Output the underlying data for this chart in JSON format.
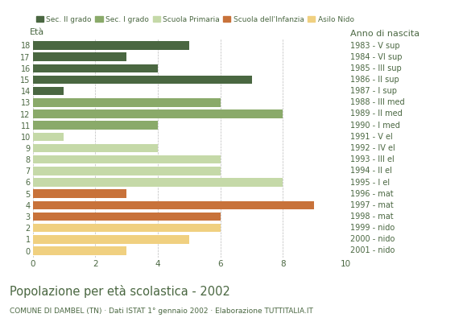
{
  "ages": [
    18,
    17,
    16,
    15,
    14,
    13,
    12,
    11,
    10,
    9,
    8,
    7,
    6,
    5,
    4,
    3,
    2,
    1,
    0
  ],
  "right_labels": [
    "1983 - V sup",
    "1984 - VI sup",
    "1985 - III sup",
    "1986 - II sup",
    "1987 - I sup",
    "1988 - III med",
    "1989 - II med",
    "1990 - I med",
    "1991 - V el",
    "1992 - IV el",
    "1993 - III el",
    "1994 - II el",
    "1995 - I el",
    "1996 - mat",
    "1997 - mat",
    "1998 - mat",
    "1999 - nido",
    "2000 - nido",
    "2001 - nido"
  ],
  "values": [
    5,
    3,
    4,
    7,
    1,
    6,
    8,
    4,
    1,
    4,
    6,
    6,
    8,
    3,
    9,
    6,
    6,
    5,
    3
  ],
  "categories": [
    "Sec. II grado",
    "Sec. II grado",
    "Sec. II grado",
    "Sec. II grado",
    "Sec. II grado",
    "Sec. I grado",
    "Sec. I grado",
    "Sec. I grado",
    "Scuola Primaria",
    "Scuola Primaria",
    "Scuola Primaria",
    "Scuola Primaria",
    "Scuola Primaria",
    "Scuola dell'Infanzia",
    "Scuola dell'Infanzia",
    "Scuola dell'Infanzia",
    "Asilo Nido",
    "Asilo Nido",
    "Asilo Nido"
  ],
  "colors": {
    "Sec. II grado": "#4a6741",
    "Sec. I grado": "#8aaa6a",
    "Scuola Primaria": "#c5d9a8",
    "Scuola dell'Infanzia": "#c8723a",
    "Asilo Nido": "#f0d080"
  },
  "legend_order": [
    "Sec. II grado",
    "Sec. I grado",
    "Scuola Primaria",
    "Scuola dell'Infanzia",
    "Asilo Nido"
  ],
  "xlim": [
    0,
    10
  ],
  "xticks": [
    0,
    2,
    4,
    6,
    8,
    10
  ],
  "label_eta": "Età",
  "label_anno": "Anno di nascita",
  "title": "Popolazione per età scolastica - 2002",
  "subtitle": "COMUNE DI DAMBEL (TN) · Dati ISTAT 1° gennaio 2002 · Elaborazione TUTTITALIA.IT",
  "text_color": "#4a6741",
  "grid_color": "#aaaaaa",
  "background_color": "#ffffff",
  "bar_height": 0.75
}
